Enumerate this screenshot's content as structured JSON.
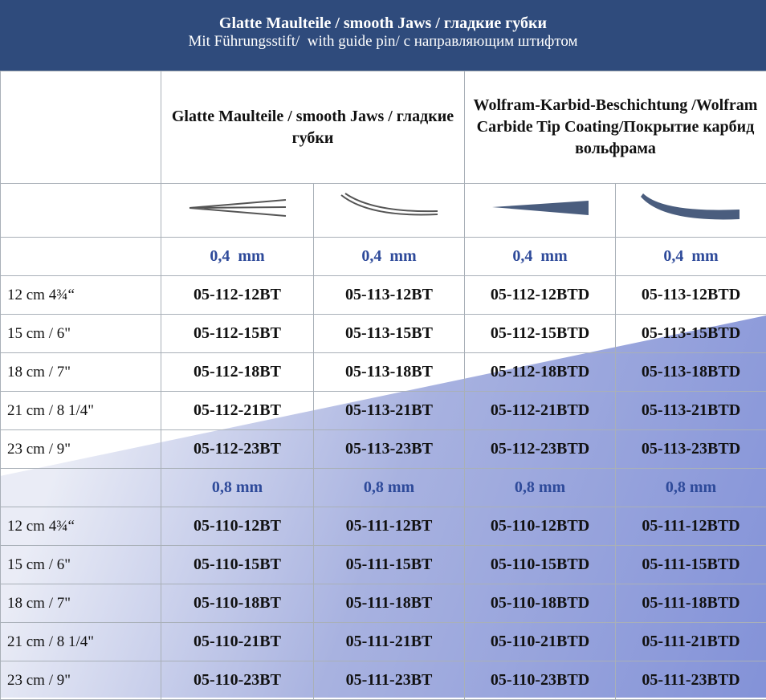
{
  "header": {
    "title": "Glatte Maulteile / smooth Jaws / гладкие губки",
    "subtitle": "Mit Führungsstift/  with guide pin/ с направляющим штифтом"
  },
  "table": {
    "group_headers": [
      "Glatte Maulteile / smooth Jaws / гладкие губки",
      "Wolfram-Karbid-Beschichtung /Wolfram Carbide Tip Coating/Покрытие карбид вольфрама"
    ],
    "sections": [
      {
        "size_labels": [
          "0,4  mm",
          "0,4  mm",
          "0,4  mm",
          "0,4  mm"
        ],
        "rows": [
          [
            "12 cm 4¾“",
            "05-112-12BT",
            "05-113-12BT",
            "05-112-12BTD",
            "05-113-12BTD"
          ],
          [
            "15 cm / 6\"",
            "05-112-15BT",
            "05-113-15BT",
            "05-112-15BTD",
            "05-113-15BTD"
          ],
          [
            "18 cm / 7\"",
            "05-112-18BT",
            "05-113-18BT",
            "05-112-18BTD",
            "05-113-18BTD"
          ],
          [
            "21 cm / 8 1/4\"",
            "05-112-21BT",
            "05-113-21BT",
            "05-112-21BTD",
            "05-113-21BTD"
          ],
          [
            "23 cm / 9\"",
            "05-112-23BT",
            "05-113-23BT",
            "05-112-23BTD",
            "05-113-23BTD"
          ]
        ]
      },
      {
        "size_labels": [
          "0,8 mm",
          "0,8 mm",
          "0,8 mm",
          "0,8 mm"
        ],
        "rows": [
          [
            "12 cm 4¾“",
            "05-110-12BT",
            "05-111-12BT",
            "05-110-12BTD",
            "05-111-12BTD"
          ],
          [
            "15 cm / 6\"",
            "05-110-15BT",
            "05-111-15BT",
            "05-110-15BTD",
            "05-111-15BTD"
          ],
          [
            "18 cm / 7\"",
            "05-110-18BT",
            "05-111-18BT",
            "05-110-18BTD",
            "05-111-18BTD"
          ],
          [
            "21 cm / 8 1/4\"",
            "05-110-21BT",
            "05-111-21BT",
            "05-110-21BTD",
            "05-111-21BTD"
          ],
          [
            "23 cm / 9\"",
            "05-110-23BT",
            "05-111-23BT",
            "05-110-23BTD",
            "05-111-23BTD"
          ]
        ]
      }
    ]
  }
}
